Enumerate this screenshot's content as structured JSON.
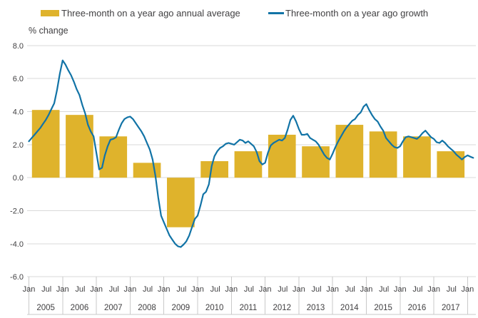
{
  "legend": {
    "bar_label": "Three-month on a year ago annual average",
    "line_label": "Three-month on a year ago growth"
  },
  "colors": {
    "bar": "#dfb32c",
    "line": "#1173a6",
    "grid": "#d9d9d9",
    "axis": "#c9c9c9",
    "text": "#414042"
  },
  "chart_data": {
    "type": "bar+line",
    "title": "",
    "ylabel": "% change",
    "ylim": [
      -6,
      8
    ],
    "grid": "horizontal",
    "legend_position": "top",
    "y_ticks": [
      8,
      6,
      4,
      2,
      0,
      -2,
      -4,
      -6
    ],
    "y_tick_labels": [
      "8.0",
      "6.0",
      "4.0",
      "2.0",
      "0.0",
      "-2.0",
      "-4.0",
      "-6.0"
    ],
    "years": [
      "2005",
      "2006",
      "2007",
      "2008",
      "2009",
      "2010",
      "2011",
      "2012",
      "2013",
      "2014",
      "2015",
      "2016",
      "2017"
    ],
    "month_tick_labels": [
      "Jan",
      "Jul"
    ],
    "trailing_month_label": "Jan",
    "bar_series": {
      "name": "Three-month on a year ago annual average",
      "values": [
        4.1,
        3.8,
        2.5,
        0.9,
        -3.0,
        1.0,
        1.6,
        2.6,
        1.9,
        3.2,
        2.8,
        2.5,
        1.6
      ]
    },
    "line_series": {
      "name": "Three-month on a year ago growth",
      "start_month": "2005-01",
      "monthly_values": [
        2.2,
        2.4,
        2.6,
        2.8,
        3.0,
        3.25,
        3.5,
        3.8,
        4.15,
        4.5,
        5.3,
        6.3,
        7.1,
        6.85,
        6.5,
        6.2,
        5.8,
        5.35,
        5.0,
        4.4,
        3.9,
        3.2,
        2.8,
        2.5,
        1.5,
        0.5,
        0.6,
        1.35,
        1.9,
        2.3,
        2.35,
        2.45,
        2.9,
        3.3,
        3.55,
        3.65,
        3.7,
        3.55,
        3.3,
        3.05,
        2.8,
        2.5,
        2.1,
        1.7,
        1.1,
        0.1,
        -1.2,
        -2.3,
        -2.7,
        -3.1,
        -3.5,
        -3.75,
        -4.0,
        -4.15,
        -4.2,
        -4.05,
        -3.85,
        -3.5,
        -3.0,
        -2.5,
        -2.3,
        -1.7,
        -1.0,
        -0.85,
        -0.4,
        0.7,
        1.3,
        1.6,
        1.8,
        1.9,
        2.05,
        2.1,
        2.05,
        2.0,
        2.15,
        2.3,
        2.25,
        2.1,
        2.2,
        2.05,
        1.9,
        1.55,
        1.0,
        0.8,
        0.9,
        1.5,
        1.95,
        2.1,
        2.2,
        2.3,
        2.25,
        2.4,
        2.9,
        3.5,
        3.75,
        3.4,
        2.95,
        2.6,
        2.6,
        2.65,
        2.4,
        2.3,
        2.2,
        2.0,
        1.7,
        1.4,
        1.2,
        1.1,
        1.45,
        1.85,
        2.2,
        2.5,
        2.8,
        3.05,
        3.25,
        3.45,
        3.55,
        3.8,
        3.95,
        4.3,
        4.45,
        4.1,
        3.8,
        3.55,
        3.4,
        3.1,
        2.85,
        2.4,
        2.2,
        2.0,
        1.85,
        1.8,
        1.9,
        2.2,
        2.45,
        2.5,
        2.45,
        2.4,
        2.35,
        2.5,
        2.7,
        2.85,
        2.65,
        2.45,
        2.35,
        2.15,
        2.1,
        2.25,
        2.1,
        1.9,
        1.75,
        1.6,
        1.4,
        1.25,
        1.1,
        1.25,
        1.35,
        1.27,
        1.2
      ]
    }
  }
}
